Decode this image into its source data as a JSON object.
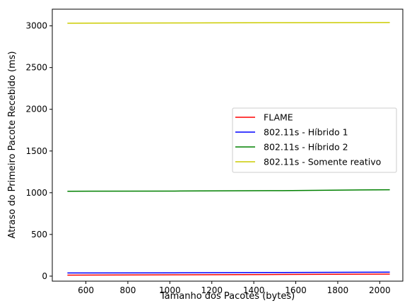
{
  "chart_data": {
    "type": "line",
    "xlabel": "Tamanho dos Pacotes (bytes)",
    "ylabel": "Atraso do Primeiro Pacote Recebido (ms)",
    "xlim": [
      440,
      2110
    ],
    "ylim": [
      -60,
      3200
    ],
    "xticks": [
      600,
      800,
      1000,
      1200,
      1400,
      1600,
      1800,
      2000
    ],
    "yticks": [
      0,
      500,
      1000,
      1500,
      2000,
      2500,
      3000
    ],
    "grid": false,
    "legend_position": "center-right",
    "x": [
      512,
      1024,
      1536,
      2048
    ],
    "series": [
      {
        "name": "FLAME",
        "color": "#ff0000",
        "values": [
          12,
          16,
          20,
          25
        ]
      },
      {
        "name": "802.11s - Híbrido 1",
        "color": "#0000ff",
        "values": [
          38,
          40,
          44,
          48
        ]
      },
      {
        "name": "802.11s - Híbrido 2",
        "color": "#008000",
        "values": [
          1018,
          1020,
          1025,
          1036
        ]
      },
      {
        "name": "802.11s - Somente reativo",
        "color": "#cccc00",
        "values": [
          3032,
          3035,
          3038,
          3040
        ]
      }
    ]
  }
}
